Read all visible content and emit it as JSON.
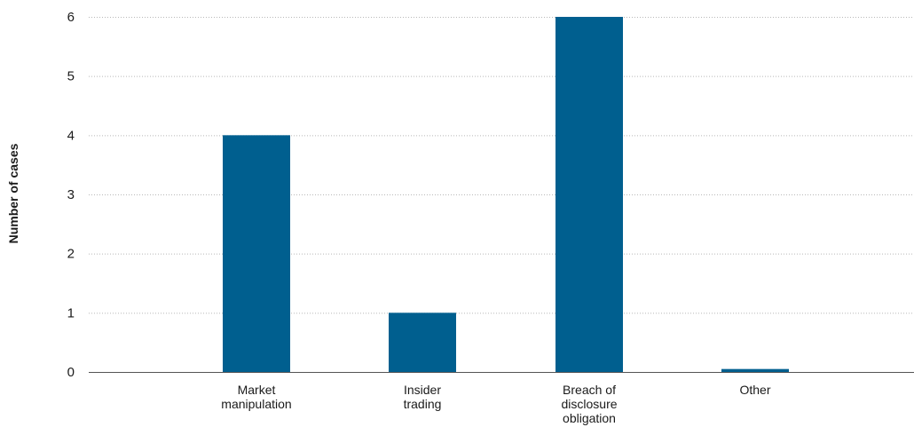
{
  "chart_data": {
    "type": "bar",
    "categories": [
      [
        "Market",
        "manipulation"
      ],
      [
        "Insider",
        "trading"
      ],
      [
        "Breach of",
        "disclosure",
        "obligation"
      ],
      [
        "Other"
      ]
    ],
    "values": [
      4,
      1,
      6,
      0.05
    ],
    "title": "",
    "xlabel": "",
    "ylabel": "Number of cases",
    "ylim": [
      0,
      6
    ],
    "yticks": [
      "0",
      "1",
      "2",
      "3",
      "4",
      "5",
      "6"
    ],
    "grid": true,
    "legend": "none",
    "bar_color": "#005f8f"
  }
}
